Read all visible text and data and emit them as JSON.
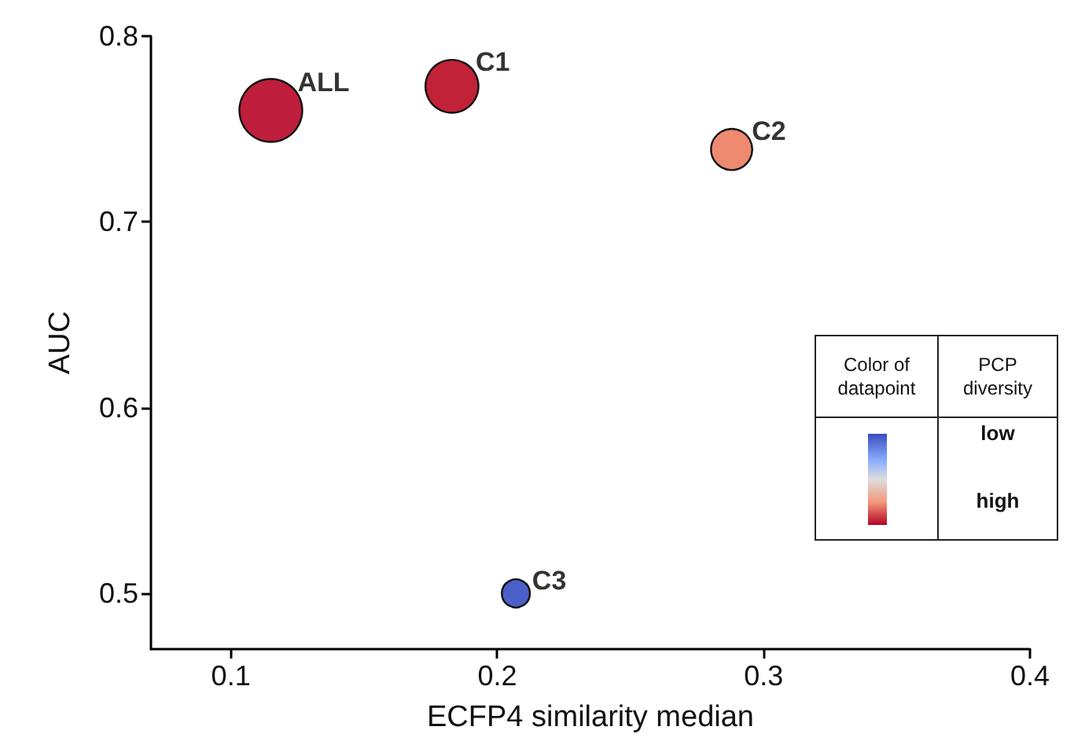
{
  "chart_data": {
    "type": "bubble",
    "xlabel": "ECFP4 similarity median",
    "ylabel": "AUC",
    "x": [
      0.115,
      0.183,
      0.288,
      0.207
    ],
    "values": [
      0.76,
      0.773,
      0.739,
      0.5
    ],
    "sizes": [
      1,
      0.71,
      0.43,
      0.2
    ],
    "colors": [
      "#bf1e3c",
      "#c12238",
      "#ee8a70",
      "#4a5fc8"
    ],
    "xlim": [
      0.07,
      0.4
    ],
    "xticks": [
      0.1,
      0.2,
      0.3,
      0.4
    ],
    "ylim": [
      0.47,
      0.8
    ],
    "yticks": [
      0.5,
      0.6,
      0.7,
      0.8
    ],
    "grid": false,
    "annotations": [
      {
        "text": "ALL",
        "x": 0.115,
        "y": 0.76
      },
      {
        "text": "C1",
        "x": 0.183,
        "y": 0.773
      },
      {
        "text": "C2",
        "x": 0.288,
        "y": 0.739
      },
      {
        "text": "C3",
        "x": 0.207,
        "y": 0.5
      },
      "Color of datapoint",
      "PCP diversity",
      "low",
      "high"
    ]
  }
}
